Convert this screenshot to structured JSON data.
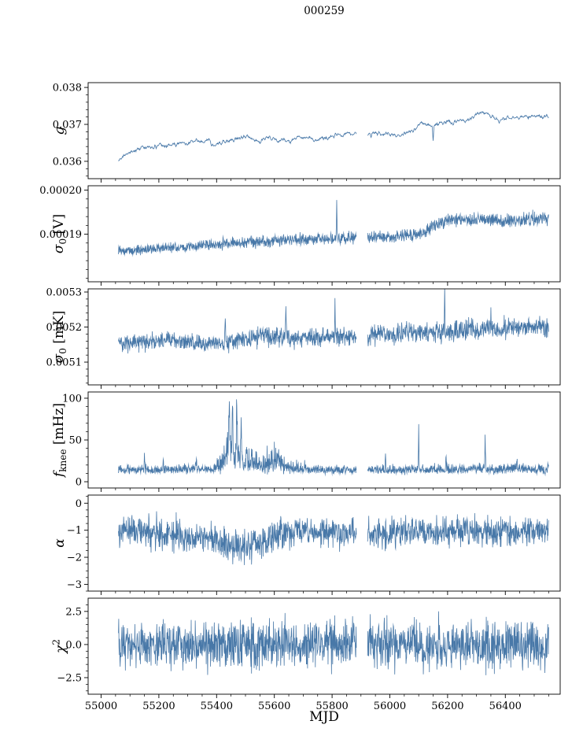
{
  "chart_data": {
    "type": "line",
    "title": "000259",
    "xlabel": "MJD",
    "line_color": "#4878a8",
    "grid": false,
    "legend": "none",
    "xlim": [
      54955,
      56590
    ],
    "xticks": [
      [
        55000,
        "55000"
      ],
      [
        55200,
        "55200"
      ],
      [
        55400,
        "55400"
      ],
      [
        55600,
        "55600"
      ],
      [
        55800,
        "55800"
      ],
      [
        56000,
        "56000"
      ],
      [
        56200,
        "56200"
      ],
      [
        56400,
        "56400"
      ]
    ],
    "xminor_step": 50,
    "x_data_range": [
      55060,
      56550
    ],
    "x_step": 1,
    "gap": [
      55885,
      55922
    ],
    "panels": [
      {
        "name": "gain",
        "ylabel": {
          "sym": "g",
          "sub": "",
          "sup": "",
          "unit": ""
        },
        "ylim": [
          0.03553,
          0.03813
        ],
        "yticks": [
          [
            0.036,
            "0.036"
          ],
          [
            0.037,
            "0.037"
          ],
          [
            0.038,
            "0.038"
          ]
        ],
        "yminor_step": 0.0002,
        "seed": 11,
        "smooth": 5,
        "skew": 0,
        "noise": [
          [
            55060,
            9e-05
          ],
          [
            56550,
            9e-05
          ]
        ],
        "trend": [
          [
            55060,
            0.036
          ],
          [
            55075,
            0.03615
          ],
          [
            55090,
            0.03622
          ],
          [
            55110,
            0.03628
          ],
          [
            55130,
            0.03636
          ],
          [
            55160,
            0.0364
          ],
          [
            55180,
            0.03638
          ],
          [
            55200,
            0.03644
          ],
          [
            55220,
            0.03641
          ],
          [
            55240,
            0.03646
          ],
          [
            55260,
            0.03644
          ],
          [
            55280,
            0.03648
          ],
          [
            55300,
            0.03644
          ],
          [
            55310,
            0.03652
          ],
          [
            55330,
            0.03656
          ],
          [
            55350,
            0.03652
          ],
          [
            55370,
            0.03658
          ],
          [
            55390,
            0.03644
          ],
          [
            55410,
            0.03648
          ],
          [
            55430,
            0.03656
          ],
          [
            55450,
            0.03654
          ],
          [
            55470,
            0.0366
          ],
          [
            55490,
            0.03664
          ],
          [
            55510,
            0.03667
          ],
          [
            55530,
            0.0366
          ],
          [
            55550,
            0.03652
          ],
          [
            55570,
            0.03663
          ],
          [
            55590,
            0.03664
          ],
          [
            55610,
            0.03655
          ],
          [
            55630,
            0.0366
          ],
          [
            55650,
            0.03653
          ],
          [
            55670,
            0.03662
          ],
          [
            55690,
            0.03664
          ],
          [
            55710,
            0.03663
          ],
          [
            55730,
            0.0366
          ],
          [
            55750,
            0.03658
          ],
          [
            55770,
            0.03662
          ],
          [
            55790,
            0.03667
          ],
          [
            55810,
            0.0367
          ],
          [
            55830,
            0.03672
          ],
          [
            55850,
            0.03674
          ],
          [
            55870,
            0.03673
          ],
          [
            55920,
            0.03672
          ],
          [
            55940,
            0.03675
          ],
          [
            55960,
            0.03677
          ],
          [
            55980,
            0.03673
          ],
          [
            56000,
            0.03672
          ],
          [
            56020,
            0.0367
          ],
          [
            56040,
            0.03673
          ],
          [
            56060,
            0.03678
          ],
          [
            56080,
            0.0368
          ],
          [
            56100,
            0.037
          ],
          [
            56120,
            0.03703
          ],
          [
            56140,
            0.03698
          ],
          [
            56160,
            0.03702
          ],
          [
            56180,
            0.03706
          ],
          [
            56200,
            0.03708
          ],
          [
            56220,
            0.03703
          ],
          [
            56240,
            0.0371
          ],
          [
            56260,
            0.03712
          ],
          [
            56280,
            0.03715
          ],
          [
            56300,
            0.03728
          ],
          [
            56320,
            0.03733
          ],
          [
            56340,
            0.03728
          ],
          [
            56360,
            0.03718
          ],
          [
            56380,
            0.03708
          ],
          [
            56400,
            0.03715
          ],
          [
            56420,
            0.03718
          ],
          [
            56440,
            0.03719
          ],
          [
            56460,
            0.0372
          ],
          [
            56480,
            0.03721
          ],
          [
            56510,
            0.03722
          ]
        ],
        "spikes": [
          [
            55935,
            0.03663,
            2
          ],
          [
            56150,
            0.0366,
            2
          ]
        ]
      },
      {
        "name": "sigma0-v",
        "ylabel": {
          "sym": "σ",
          "sub": "0",
          "sup": "",
          "unit": " [V]"
        },
        "ylim": [
          0.0001792,
          0.000201
        ],
        "yticks": [
          [
            0.00019,
            "0.00019"
          ],
          [
            0.0002,
            "0.00020"
          ]
        ],
        "yminor_step": 2e-06,
        "seed": 23,
        "smooth": 1,
        "skew": 0,
        "noise": [
          [
            55060,
            8e-07
          ],
          [
            55600,
            9e-07
          ],
          [
            55900,
            1e-06
          ],
          [
            56100,
            1.1e-06
          ],
          [
            56510,
            1.2e-06
          ]
        ],
        "trend": [
          [
            55060,
            0.0001862
          ],
          [
            55120,
            0.0001864
          ],
          [
            55180,
            0.0001867
          ],
          [
            55240,
            0.0001869
          ],
          [
            55300,
            0.0001872
          ],
          [
            55360,
            0.0001876
          ],
          [
            55420,
            0.0001879
          ],
          [
            55480,
            0.0001881
          ],
          [
            55540,
            0.0001883
          ],
          [
            55600,
            0.0001885
          ],
          [
            55660,
            0.0001886
          ],
          [
            55720,
            0.0001888
          ],
          [
            55780,
            0.0001889
          ],
          [
            55840,
            0.0001891
          ],
          [
            55920,
            0.0001893
          ],
          [
            55980,
            0.0001894
          ],
          [
            56040,
            0.0001896
          ],
          [
            56100,
            0.0001899
          ],
          [
            56120,
            0.0001905
          ],
          [
            56160,
            0.0001922
          ],
          [
            56200,
            0.0001931
          ],
          [
            56260,
            0.0001935
          ],
          [
            56320,
            0.0001933
          ],
          [
            56380,
            0.0001929
          ],
          [
            56440,
            0.0001933
          ],
          [
            56510,
            0.0001934
          ]
        ],
        "spikes": [
          [
            55816,
            0.0001968,
            1.2
          ]
        ]
      },
      {
        "name": "sigma0-mk",
        "ylabel": {
          "sym": "σ",
          "sub": "0",
          "sup": "",
          "unit": " [mK]"
        },
        "ylim": [
          0.005035,
          0.005309
        ],
        "yticks": [
          [
            0.0051,
            "0.0051"
          ],
          [
            0.0052,
            "0.0052"
          ],
          [
            0.0053,
            "0.0053"
          ]
        ],
        "yminor_step": 2e-05,
        "seed": 37,
        "smooth": 1,
        "skew": 0,
        "noise": [
          [
            55060,
            1.8e-05
          ],
          [
            55400,
            1.7e-05
          ],
          [
            55550,
            2.2e-05
          ],
          [
            55700,
            1.8e-05
          ],
          [
            55900,
            2e-05
          ],
          [
            56100,
            2.2e-05
          ],
          [
            56300,
            2.2e-05
          ],
          [
            56510,
            2.1e-05
          ]
        ],
        "trend": [
          [
            55060,
            0.005158
          ],
          [
            55120,
            0.005154
          ],
          [
            55180,
            0.00516
          ],
          [
            55240,
            0.005163
          ],
          [
            55300,
            0.00516
          ],
          [
            55360,
            0.005156
          ],
          [
            55420,
            0.005152
          ],
          [
            55470,
            0.00516
          ],
          [
            55520,
            0.005168
          ],
          [
            55570,
            0.005178
          ],
          [
            55610,
            0.005172
          ],
          [
            55660,
            0.005168
          ],
          [
            55720,
            0.00517
          ],
          [
            55780,
            0.005172
          ],
          [
            55840,
            0.00517
          ],
          [
            55900,
            0.005174
          ],
          [
            55960,
            0.005178
          ],
          [
            56020,
            0.00518
          ],
          [
            56080,
            0.005183
          ],
          [
            56140,
            0.005185
          ],
          [
            56200,
            0.005188
          ],
          [
            56260,
            0.005192
          ],
          [
            56320,
            0.005194
          ],
          [
            56380,
            0.005196
          ],
          [
            56440,
            0.005199
          ],
          [
            56510,
            0.0052
          ]
        ],
        "spikes": [
          [
            55430,
            0.005235,
            2
          ],
          [
            55640,
            0.005255,
            1.5
          ],
          [
            55810,
            0.005285,
            1.2
          ],
          [
            56190,
            0.0053,
            1.2
          ],
          [
            56350,
            0.005245,
            1.5
          ]
        ]
      },
      {
        "name": "fknee",
        "ylabel": {
          "sym": "f",
          "sub": "knee",
          "sup": "",
          "unit": " [mHz]"
        },
        "ylim": [
          -7.5,
          107.5
        ],
        "yticks": [
          [
            0,
            "0"
          ],
          [
            50,
            "50"
          ],
          [
            100,
            "100"
          ]
        ],
        "yminor_step": 10,
        "seed": 53,
        "smooth": 1,
        "skew": 1.3,
        "clip": [
          6,
          103
        ],
        "noise": [
          [
            55060,
            4
          ],
          [
            55380,
            4.5
          ],
          [
            55410,
            10
          ],
          [
            55435,
            19
          ],
          [
            55460,
            19
          ],
          [
            55490,
            16
          ],
          [
            55520,
            12
          ],
          [
            55550,
            9
          ],
          [
            55580,
            12
          ],
          [
            55615,
            13
          ],
          [
            55645,
            8
          ],
          [
            55680,
            5.5
          ],
          [
            55750,
            4.5
          ],
          [
            56550,
            5
          ]
        ],
        "trend": [
          [
            55060,
            13
          ],
          [
            55200,
            13
          ],
          [
            55300,
            14
          ],
          [
            55380,
            15
          ],
          [
            55410,
            18
          ],
          [
            55430,
            26
          ],
          [
            55450,
            28
          ],
          [
            55470,
            26
          ],
          [
            55500,
            22
          ],
          [
            55530,
            18
          ],
          [
            55560,
            17
          ],
          [
            55590,
            20
          ],
          [
            55620,
            21
          ],
          [
            55650,
            16
          ],
          [
            55680,
            14
          ],
          [
            55750,
            13
          ],
          [
            55850,
            13
          ],
          [
            55950,
            13
          ],
          [
            56100,
            13
          ],
          [
            56300,
            14
          ],
          [
            56550,
            14
          ]
        ],
        "spikes": [
          [
            55150,
            34,
            1.2
          ],
          [
            55215,
            26,
            1.2
          ],
          [
            55330,
            22,
            1.2
          ],
          [
            55444,
            95,
            2.5
          ],
          [
            55455,
            88,
            2
          ],
          [
            55470,
            80,
            2
          ],
          [
            55485,
            72,
            2
          ],
          [
            55900,
            30,
            1.2
          ],
          [
            55985,
            32,
            1.2
          ],
          [
            56100,
            66,
            1.2
          ],
          [
            56195,
            34,
            1.2
          ],
          [
            56330,
            56,
            1.2
          ],
          [
            56440,
            26,
            1.2
          ]
        ]
      },
      {
        "name": "alpha",
        "ylabel": {
          "sym": "α",
          "sub": "",
          "sup": "",
          "unit": ""
        },
        "ylim": [
          -3.25,
          0.3
        ],
        "yticks": [
          [
            0,
            "0"
          ],
          [
            -1,
            "−1"
          ],
          [
            -2,
            "−2"
          ],
          [
            -3,
            "−3"
          ]
        ],
        "yminor_step": 0.25,
        "seed": 71,
        "smooth": 1,
        "skew": 0,
        "clip": [
          -2.9,
          -0.15
        ],
        "noise": [
          [
            55060,
            0.4
          ],
          [
            55280,
            0.45
          ],
          [
            55340,
            0.38
          ],
          [
            55400,
            0.45
          ],
          [
            55460,
            0.45
          ],
          [
            55540,
            0.45
          ],
          [
            55600,
            0.42
          ],
          [
            55650,
            0.4
          ],
          [
            56510,
            0.4
          ]
        ],
        "trend": [
          [
            55060,
            -1.05
          ],
          [
            55150,
            -1.02
          ],
          [
            55250,
            -1.1
          ],
          [
            55300,
            -1.25
          ],
          [
            55340,
            -1.3
          ],
          [
            55370,
            -1.22
          ],
          [
            55400,
            -1.35
          ],
          [
            55430,
            -1.55
          ],
          [
            55460,
            -1.6
          ],
          [
            55500,
            -1.58
          ],
          [
            55540,
            -1.5
          ],
          [
            55570,
            -1.4
          ],
          [
            55600,
            -1.18
          ],
          [
            55630,
            -1.08
          ],
          [
            55700,
            -1.03
          ],
          [
            55800,
            -1.05
          ],
          [
            55900,
            -1.08
          ],
          [
            56000,
            -1.05
          ],
          [
            56510,
            -1.05
          ]
        ],
        "spikes": []
      },
      {
        "name": "chi2",
        "ylabel": {
          "sym": "χ",
          "sub": "",
          "sup": "2",
          "unit": ""
        },
        "ylim": [
          -3.75,
          3.5
        ],
        "yticks": [
          [
            2.5,
            "2.5"
          ],
          [
            0,
            "0.0"
          ],
          [
            -2.5,
            "−2.5"
          ]
        ],
        "yminor_step": 0.5,
        "seed": 89,
        "smooth": 1,
        "skew": 0,
        "clip": [
          -2.95,
          2.95
        ],
        "noise": [
          [
            55060,
            1.35
          ],
          [
            56550,
            1.35
          ]
        ],
        "trend": [
          [
            55060,
            0
          ],
          [
            56550,
            0
          ]
        ],
        "spikes": []
      }
    ]
  }
}
